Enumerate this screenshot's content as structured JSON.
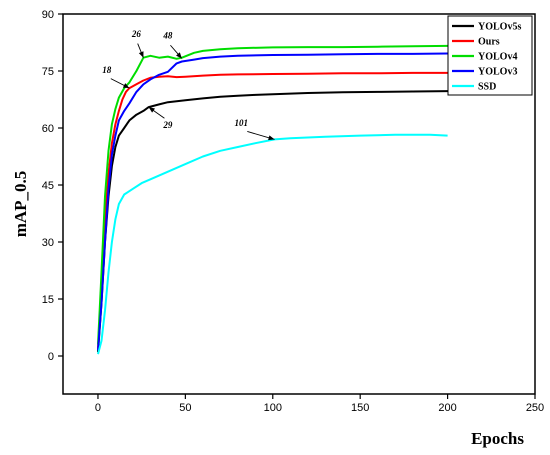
{
  "chart_data": {
    "type": "line",
    "title": "",
    "xlabel": "Epochs",
    "ylabel": "mAP_0.5",
    "xlim": [
      -20,
      250
    ],
    "ylim": [
      -10,
      90
    ],
    "xticks": [
      0,
      50,
      100,
      150,
      200,
      250
    ],
    "yticks": [
      0,
      15,
      30,
      45,
      60,
      75,
      90
    ],
    "grid": false,
    "legend_position": "top-right",
    "series": [
      {
        "name": "YOLOv5s",
        "color": "#000000",
        "points": [
          [
            0,
            1
          ],
          [
            2,
            14
          ],
          [
            4,
            30
          ],
          [
            6,
            42
          ],
          [
            8,
            50
          ],
          [
            10,
            55
          ],
          [
            12,
            58
          ],
          [
            15,
            60
          ],
          [
            18,
            62
          ],
          [
            22,
            63.5
          ],
          [
            26,
            64.5
          ],
          [
            29,
            65.5
          ],
          [
            35,
            66.2
          ],
          [
            40,
            66.8
          ],
          [
            50,
            67.3
          ],
          [
            60,
            67.8
          ],
          [
            70,
            68.2
          ],
          [
            80,
            68.5
          ],
          [
            90,
            68.7
          ],
          [
            100,
            68.9
          ],
          [
            120,
            69.2
          ],
          [
            140,
            69.4
          ],
          [
            160,
            69.5
          ],
          [
            180,
            69.6
          ],
          [
            200,
            69.7
          ]
        ]
      },
      {
        "name": "Ours",
        "color": "#ff0000",
        "points": [
          [
            0,
            2
          ],
          [
            2,
            18
          ],
          [
            4,
            36
          ],
          [
            6,
            48
          ],
          [
            8,
            56
          ],
          [
            10,
            61
          ],
          [
            12,
            64.5
          ],
          [
            14,
            67.5
          ],
          [
            16,
            69.5
          ],
          [
            18,
            70.5
          ],
          [
            22,
            71.5
          ],
          [
            26,
            72.5
          ],
          [
            30,
            73.2
          ],
          [
            35,
            73.5
          ],
          [
            40,
            73.6
          ],
          [
            45,
            73.4
          ],
          [
            50,
            73.5
          ],
          [
            60,
            73.8
          ],
          [
            70,
            74
          ],
          [
            80,
            74.1
          ],
          [
            100,
            74.2
          ],
          [
            120,
            74.3
          ],
          [
            140,
            74.4
          ],
          [
            160,
            74.4
          ],
          [
            180,
            74.5
          ],
          [
            200,
            74.5
          ]
        ]
      },
      {
        "name": "YOLOv4",
        "color": "#00dd00",
        "points": [
          [
            0,
            3
          ],
          [
            2,
            22
          ],
          [
            4,
            42
          ],
          [
            6,
            54
          ],
          [
            8,
            61
          ],
          [
            10,
            65
          ],
          [
            12,
            68
          ],
          [
            15,
            70.5
          ],
          [
            18,
            72
          ],
          [
            22,
            75
          ],
          [
            26,
            78.5
          ],
          [
            30,
            79
          ],
          [
            35,
            78.5
          ],
          [
            40,
            78.8
          ],
          [
            45,
            78.2
          ],
          [
            48,
            78.5
          ],
          [
            55,
            79.8
          ],
          [
            60,
            80.3
          ],
          [
            70,
            80.7
          ],
          [
            80,
            81
          ],
          [
            100,
            81.2
          ],
          [
            120,
            81.3
          ],
          [
            140,
            81.3
          ],
          [
            160,
            81.4
          ],
          [
            180,
            81.5
          ],
          [
            200,
            81.6
          ]
        ]
      },
      {
        "name": "YOLOv3",
        "color": "#0000ff",
        "points": [
          [
            0,
            1.5
          ],
          [
            2,
            14
          ],
          [
            4,
            30
          ],
          [
            6,
            44
          ],
          [
            8,
            53
          ],
          [
            10,
            58
          ],
          [
            12,
            62
          ],
          [
            15,
            64.5
          ],
          [
            18,
            66.5
          ],
          [
            22,
            69.5
          ],
          [
            26,
            71.5
          ],
          [
            30,
            72.8
          ],
          [
            35,
            74
          ],
          [
            40,
            74.8
          ],
          [
            45,
            77
          ],
          [
            48,
            77.5
          ],
          [
            55,
            78
          ],
          [
            60,
            78.4
          ],
          [
            70,
            78.8
          ],
          [
            80,
            79
          ],
          [
            100,
            79.2
          ],
          [
            120,
            79.3
          ],
          [
            140,
            79.4
          ],
          [
            160,
            79.5
          ],
          [
            180,
            79.5
          ],
          [
            200,
            79.6
          ]
        ]
      },
      {
        "name": "SSD",
        "color": "#00ffff",
        "points": [
          [
            0,
            0.5
          ],
          [
            2,
            4
          ],
          [
            4,
            12
          ],
          [
            6,
            22
          ],
          [
            8,
            30
          ],
          [
            10,
            36
          ],
          [
            12,
            40
          ],
          [
            15,
            42.5
          ],
          [
            20,
            44
          ],
          [
            25,
            45.5
          ],
          [
            30,
            46.5
          ],
          [
            40,
            48.5
          ],
          [
            50,
            50.5
          ],
          [
            60,
            52.5
          ],
          [
            70,
            54
          ],
          [
            80,
            55
          ],
          [
            90,
            56
          ],
          [
            101,
            57
          ],
          [
            110,
            57.3
          ],
          [
            120,
            57.5
          ],
          [
            130,
            57.7
          ],
          [
            150,
            58
          ],
          [
            170,
            58.2
          ],
          [
            190,
            58.2
          ],
          [
            200,
            58
          ]
        ]
      }
    ],
    "annotations": [
      {
        "text": "18",
        "x": 18,
        "y": 70.5,
        "label_x": 5,
        "label_y": 74.5
      },
      {
        "text": "26",
        "x": 26,
        "y": 78.5,
        "label_x": 22,
        "label_y": 84
      },
      {
        "text": "48",
        "x": 48,
        "y": 78.3,
        "label_x": 40,
        "label_y": 83.5
      },
      {
        "text": "29",
        "x": 29,
        "y": 65.5,
        "label_x": 40,
        "label_y": 60
      },
      {
        "text": "101",
        "x": 101,
        "y": 57,
        "label_x": 82,
        "label_y": 60.5
      }
    ]
  }
}
